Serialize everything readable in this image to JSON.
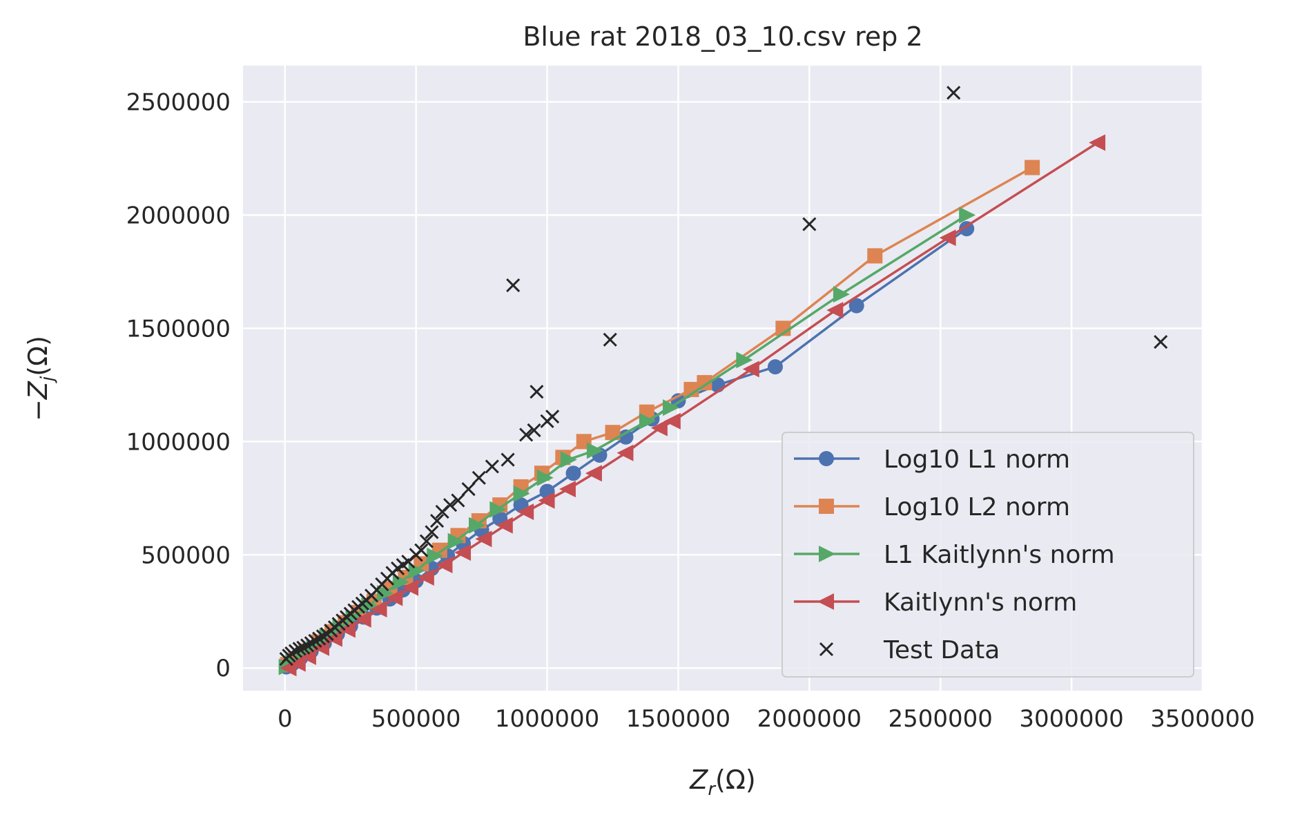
{
  "chart_data": {
    "type": "scatter",
    "title": "Blue rat 2018_03_10.csv rep 2",
    "xlabel_main": "Z",
    "xlabel_sub": "r",
    "xlabel_unit": "(Ω)",
    "ylabel_prefix": "−Z",
    "ylabel_sub": "j",
    "ylabel_unit": "(Ω)",
    "xlim": [
      -160000,
      3500000
    ],
    "ylim": [
      -100000,
      2660000
    ],
    "xticks": [
      0,
      500000,
      1000000,
      1500000,
      2000000,
      2500000,
      3000000,
      3500000
    ],
    "xtick_labels": [
      "0",
      "500000",
      "1000000",
      "1500000",
      "2000000",
      "2500000",
      "3000000",
      "3500000"
    ],
    "yticks": [
      0,
      500000,
      1000000,
      1500000,
      2000000,
      2500000
    ],
    "ytick_labels": [
      "0",
      "500000",
      "1000000",
      "1500000",
      "2000000",
      "2500000"
    ],
    "grid": true,
    "legend_position": "lower-right",
    "series": [
      {
        "name": "Log10 L1 norm",
        "color": "#4c72b0",
        "marker": "circle",
        "line": true,
        "points": [
          [
            5000,
            5000
          ],
          [
            30000,
            20000
          ],
          [
            60000,
            45000
          ],
          [
            100000,
            75000
          ],
          [
            150000,
            110000
          ],
          [
            200000,
            150000
          ],
          [
            250000,
            185000
          ],
          [
            300000,
            225000
          ],
          [
            350000,
            265000
          ],
          [
            400000,
            305000
          ],
          [
            450000,
            345000
          ],
          [
            500000,
            385000
          ],
          [
            560000,
            440000
          ],
          [
            620000,
            495000
          ],
          [
            680000,
            550000
          ],
          [
            750000,
            610000
          ],
          [
            820000,
            660000
          ],
          [
            900000,
            720000
          ],
          [
            1000000,
            780000
          ],
          [
            1100000,
            860000
          ],
          [
            1200000,
            940000
          ],
          [
            1300000,
            1020000
          ],
          [
            1400000,
            1100000
          ],
          [
            1500000,
            1180000
          ],
          [
            1650000,
            1250000
          ],
          [
            1870000,
            1330000
          ],
          [
            2180000,
            1600000
          ],
          [
            2600000,
            1940000
          ]
        ]
      },
      {
        "name": "Log10 L2 norm",
        "color": "#dd8452",
        "marker": "square",
        "line": true,
        "points": [
          [
            10000,
            15000
          ],
          [
            40000,
            40000
          ],
          [
            80000,
            75000
          ],
          [
            130000,
            115000
          ],
          [
            180000,
            160000
          ],
          [
            230000,
            200000
          ],
          [
            280000,
            245000
          ],
          [
            340000,
            295000
          ],
          [
            400000,
            350000
          ],
          [
            460000,
            400000
          ],
          [
            520000,
            460000
          ],
          [
            590000,
            520000
          ],
          [
            660000,
            585000
          ],
          [
            740000,
            650000
          ],
          [
            820000,
            720000
          ],
          [
            900000,
            800000
          ],
          [
            980000,
            860000
          ],
          [
            1060000,
            930000
          ],
          [
            1140000,
            1000000
          ],
          [
            1250000,
            1040000
          ],
          [
            1380000,
            1130000
          ],
          [
            1550000,
            1230000
          ],
          [
            1600000,
            1260000
          ],
          [
            1900000,
            1500000
          ],
          [
            2250000,
            1820000
          ],
          [
            2850000,
            2210000
          ]
        ]
      },
      {
        "name": "L1 Kaitlynn's norm",
        "color": "#55a868",
        "marker": "triangle-right",
        "line": true,
        "points": [
          [
            5000,
            5000
          ],
          [
            30000,
            25000
          ],
          [
            70000,
            60000
          ],
          [
            110000,
            95000
          ],
          [
            160000,
            140000
          ],
          [
            210000,
            180000
          ],
          [
            260000,
            225000
          ],
          [
            320000,
            275000
          ],
          [
            380000,
            330000
          ],
          [
            440000,
            380000
          ],
          [
            500000,
            430000
          ],
          [
            570000,
            495000
          ],
          [
            650000,
            560000
          ],
          [
            730000,
            630000
          ],
          [
            810000,
            700000
          ],
          [
            900000,
            770000
          ],
          [
            990000,
            840000
          ],
          [
            1080000,
            920000
          ],
          [
            1180000,
            960000
          ],
          [
            1380000,
            1090000
          ],
          [
            1470000,
            1150000
          ],
          [
            1750000,
            1360000
          ],
          [
            2120000,
            1650000
          ],
          [
            2600000,
            2000000
          ]
        ]
      },
      {
        "name": "Kaitlynn's norm",
        "color": "#c44e52",
        "marker": "triangle-left",
        "line": true,
        "points": [
          [
            15000,
            0
          ],
          [
            50000,
            20000
          ],
          [
            90000,
            50000
          ],
          [
            140000,
            90000
          ],
          [
            190000,
            130000
          ],
          [
            240000,
            170000
          ],
          [
            300000,
            215000
          ],
          [
            360000,
            260000
          ],
          [
            420000,
            310000
          ],
          [
            480000,
            355000
          ],
          [
            540000,
            400000
          ],
          [
            610000,
            455000
          ],
          [
            680000,
            510000
          ],
          [
            760000,
            570000
          ],
          [
            840000,
            630000
          ],
          [
            920000,
            690000
          ],
          [
            1000000,
            740000
          ],
          [
            1080000,
            790000
          ],
          [
            1180000,
            860000
          ],
          [
            1300000,
            950000
          ],
          [
            1430000,
            1060000
          ],
          [
            1480000,
            1090000
          ],
          [
            1780000,
            1320000
          ],
          [
            2100000,
            1580000
          ],
          [
            2530000,
            1900000
          ],
          [
            3100000,
            2320000
          ]
        ]
      },
      {
        "name": "Test Data",
        "color": "#262626",
        "marker": "x",
        "line": false,
        "points": [
          [
            5000,
            40000
          ],
          [
            15000,
            55000
          ],
          [
            25000,
            65000
          ],
          [
            40000,
            75000
          ],
          [
            55000,
            85000
          ],
          [
            70000,
            90000
          ],
          [
            85000,
            100000
          ],
          [
            100000,
            110000
          ],
          [
            115000,
            120000
          ],
          [
            130000,
            130000
          ],
          [
            145000,
            140000
          ],
          [
            160000,
            150000
          ],
          [
            175000,
            165000
          ],
          [
            190000,
            180000
          ],
          [
            205000,
            195000
          ],
          [
            220000,
            210000
          ],
          [
            235000,
            225000
          ],
          [
            250000,
            240000
          ],
          [
            265000,
            255000
          ],
          [
            280000,
            270000
          ],
          [
            295000,
            285000
          ],
          [
            310000,
            300000
          ],
          [
            330000,
            320000
          ],
          [
            350000,
            345000
          ],
          [
            370000,
            370000
          ],
          [
            390000,
            395000
          ],
          [
            410000,
            420000
          ],
          [
            430000,
            440000
          ],
          [
            450000,
            455000
          ],
          [
            470000,
            470000
          ],
          [
            500000,
            500000
          ],
          [
            520000,
            520000
          ],
          [
            540000,
            560000
          ],
          [
            560000,
            600000
          ],
          [
            580000,
            650000
          ],
          [
            600000,
            690000
          ],
          [
            630000,
            720000
          ],
          [
            660000,
            740000
          ],
          [
            700000,
            790000
          ],
          [
            740000,
            840000
          ],
          [
            790000,
            890000
          ],
          [
            850000,
            920000
          ],
          [
            920000,
            1030000
          ],
          [
            950000,
            1050000
          ],
          [
            1000000,
            1090000
          ],
          [
            1020000,
            1110000
          ],
          [
            960000,
            1220000
          ],
          [
            1240000,
            1450000
          ],
          [
            870000,
            1690000
          ],
          [
            2000000,
            1960000
          ],
          [
            2550000,
            2540000
          ],
          [
            3340000,
            1440000
          ]
        ]
      }
    ]
  }
}
